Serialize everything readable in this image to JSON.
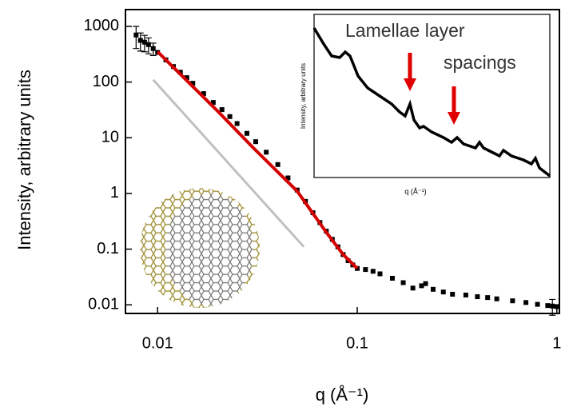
{
  "chart_data": [
    {
      "type": "scatter",
      "xlabel": "q (Å⁻¹)",
      "ylabel": "Intensity, arbitrary units",
      "log_x": true,
      "log_y": true,
      "xlim": [
        0.0069,
        1.03
      ],
      "ylim": [
        0.007,
        2000
      ],
      "xticks": [
        0.01,
        0.1,
        1
      ],
      "yticks": [
        1000,
        100,
        10,
        1,
        0.1,
        0.01
      ],
      "series": [
        {
          "color": "#000000",
          "style": "markers",
          "x": [
            0.0078,
            0.0082,
            0.0086,
            0.009,
            0.0095,
            0.01,
            0.011,
            0.012,
            0.013,
            0.014,
            0.015,
            0.017,
            0.019,
            0.021,
            0.023,
            0.025,
            0.028,
            0.031,
            0.035,
            0.04,
            0.045,
            0.05,
            0.055,
            0.06,
            0.065,
            0.07,
            0.075,
            0.08,
            0.085,
            0.09,
            0.095,
            0.1,
            0.11,
            0.12,
            0.13,
            0.15,
            0.17,
            0.19,
            0.21,
            0.22,
            0.24,
            0.27,
            0.3,
            0.35,
            0.4,
            0.45,
            0.5,
            0.6,
            0.7,
            0.8,
            0.9,
            0.95,
            1.0
          ],
          "values": [
            700,
            560,
            520,
            470,
            400,
            340,
            250,
            190,
            150,
            120,
            95,
            62,
            43,
            32,
            24,
            18,
            12,
            8.5,
            5.5,
            3.3,
            1.9,
            1.15,
            0.72,
            0.45,
            0.3,
            0.21,
            0.15,
            0.11,
            0.08,
            0.062,
            0.052,
            0.045,
            0.043,
            0.04,
            0.036,
            0.03,
            0.025,
            0.02,
            0.022,
            0.024,
            0.019,
            0.017,
            0.0155,
            0.015,
            0.014,
            0.0135,
            0.0128,
            0.0118,
            0.011,
            0.0102,
            0.0097,
            0.0095,
            0.0093
          ],
          "errors": [
            300,
            200,
            170,
            150,
            100,
            null,
            null,
            null,
            null,
            null,
            null,
            null,
            null,
            null,
            null,
            null,
            null,
            null,
            null,
            null,
            null,
            null,
            null,
            null,
            null,
            null,
            null,
            null,
            null,
            null,
            null,
            null,
            null,
            null,
            null,
            null,
            null,
            null,
            null,
            null,
            null,
            null,
            null,
            null,
            null,
            null,
            null,
            null,
            null,
            null,
            null,
            0.003,
            null
          ]
        },
        {
          "color": "#d40000",
          "style": "line",
          "x": [
            0.01,
            0.02,
            0.03,
            0.05,
            0.07,
            0.085,
            0.1
          ],
          "values": [
            350,
            30,
            6.7,
            1.1,
            0.2,
            0.08,
            0.045
          ]
        },
        {
          "color": "#c0c0c0",
          "style": "line",
          "x": [
            0.0095,
            0.054
          ],
          "values": [
            110,
            0.11
          ]
        }
      ]
    },
    {
      "type": "line",
      "xlabel": "q (Å⁻¹)",
      "ylabel": "Intensity, arbitrary units",
      "annotation": [
        "Lamellae layer",
        "spacings"
      ],
      "xlim": [
        0,
        295
      ],
      "ylim": [
        0,
        204
      ],
      "color": "#000000",
      "x": [
        0,
        12,
        22,
        32,
        39,
        45,
        55,
        67,
        82,
        97,
        107,
        114,
        120,
        125,
        132,
        137,
        147,
        162,
        172,
        179,
        187,
        202,
        207,
        212,
        222,
        232,
        237,
        247,
        262,
        272,
        277,
        282,
        295
      ],
      "values": [
        187,
        167,
        152,
        150,
        157,
        152,
        127,
        112,
        102,
        92,
        82,
        77,
        92,
        72,
        62,
        64,
        57,
        50,
        44,
        50,
        42,
        37,
        44,
        37,
        32,
        27,
        34,
        27,
        22,
        17,
        24,
        12,
        2
      ]
    }
  ]
}
